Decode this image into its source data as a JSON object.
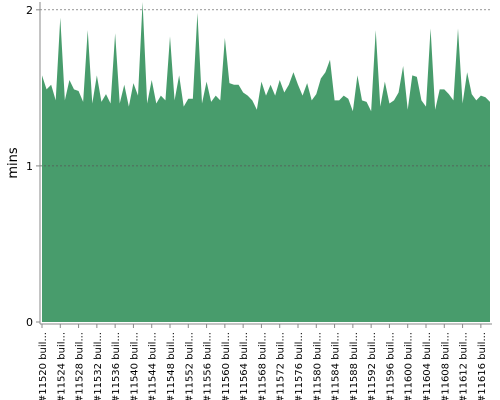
{
  "chart_data": {
    "type": "area",
    "y_label": "mins",
    "color": "#489c6c",
    "categories": [
      "#11520 buil...",
      null,
      null,
      null,
      "#11524 buil...",
      null,
      null,
      null,
      "#11528 buil...",
      null,
      null,
      null,
      "#11532 buil...",
      null,
      null,
      null,
      "#11536 buil...",
      null,
      null,
      null,
      "#11540 buil...",
      null,
      null,
      null,
      "#11544 buil...",
      null,
      null,
      null,
      "#11548 buil...",
      null,
      null,
      null,
      "#11552 buil...",
      null,
      null,
      null,
      "#11556 buil...",
      null,
      null,
      null,
      "#11560 buil...",
      null,
      null,
      null,
      "#11564 buil...",
      null,
      null,
      null,
      "#11568 buil...",
      null,
      null,
      null,
      "#11572 buil...",
      null,
      null,
      null,
      "#11576 buil...",
      null,
      null,
      null,
      "#11580 buil...",
      null,
      null,
      null,
      "#11584 buil...",
      null,
      null,
      null,
      "#11588 buil...",
      null,
      null,
      null,
      "#11592 buil...",
      null,
      null,
      null,
      "#11596 buil...",
      null,
      null,
      null,
      "#11600 buil...",
      null,
      null,
      null,
      "#11604 buil...",
      null,
      null,
      null,
      "#11608 buil...",
      null,
      null,
      null,
      "#11612 buil...",
      null,
      null,
      null,
      "#11616 buil...",
      null,
      null
    ],
    "values": [
      1.58,
      1.49,
      1.52,
      1.42,
      1.95,
      1.42,
      1.55,
      1.49,
      1.48,
      1.41,
      1.87,
      1.4,
      1.58,
      1.41,
      1.46,
      1.4,
      1.85,
      1.4,
      1.52,
      1.38,
      1.53,
      1.45,
      2.05,
      1.4,
      1.55,
      1.4,
      1.45,
      1.42,
      1.83,
      1.42,
      1.58,
      1.38,
      1.43,
      1.43,
      1.98,
      1.4,
      1.54,
      1.41,
      1.45,
      1.42,
      1.82,
      1.53,
      1.52,
      1.52,
      1.47,
      1.45,
      1.42,
      1.36,
      1.54,
      1.45,
      1.52,
      1.45,
      1.55,
      1.47,
      1.52,
      1.6,
      1.52,
      1.45,
      1.53,
      1.42,
      1.46,
      1.56,
      1.6,
      1.68,
      1.42,
      1.42,
      1.45,
      1.43,
      1.35,
      1.58,
      1.42,
      1.41,
      1.35,
      1.87,
      1.38,
      1.54,
      1.4,
      1.42,
      1.47,
      1.64,
      1.36,
      1.58,
      1.57,
      1.42,
      1.38,
      1.88,
      1.36,
      1.49,
      1.49,
      1.46,
      1.42,
      1.88,
      1.4,
      1.6,
      1.46,
      1.42,
      1.45,
      1.44,
      1.41
    ],
    "ylim": [
      0,
      2.05
    ],
    "yticks": [
      0,
      1,
      2
    ],
    "grid": true
  }
}
